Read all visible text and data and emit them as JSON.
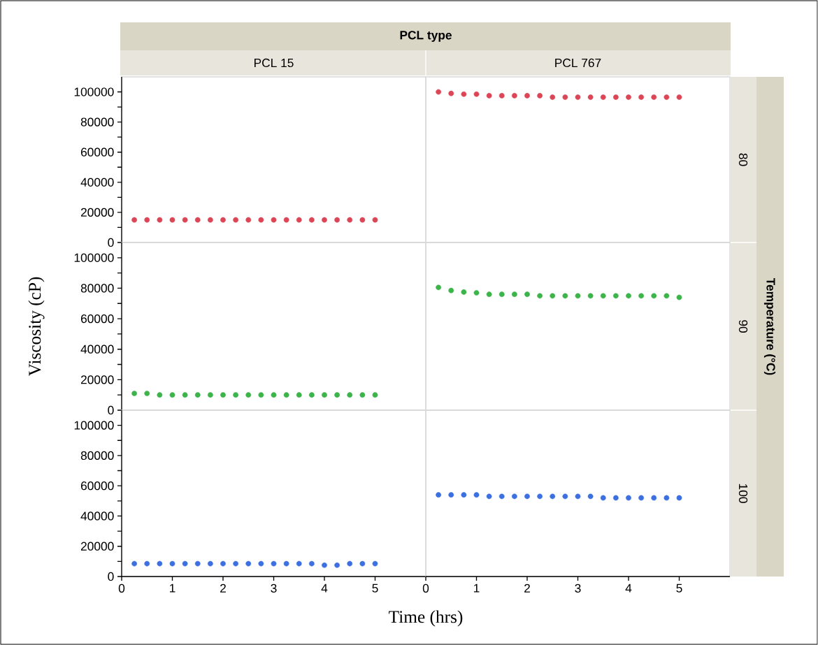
{
  "chart_data": [
    {
      "type": "scatter",
      "title": "PCL 15",
      "annotations": [
        "PCL type"
      ],
      "x": [
        0.25,
        0.5,
        0.75,
        1,
        1.25,
        1.5,
        1.75,
        2,
        2.25,
        2.5,
        2.75,
        3,
        3.25,
        3.5,
        3.75,
        4,
        4.25,
        4.5,
        4.75,
        5
      ],
      "values": [
        15000,
        15000,
        15000,
        15000,
        15000,
        15000,
        15000,
        15000,
        15000,
        15000,
        15000,
        15000,
        15000,
        15000,
        15000,
        15000,
        15000,
        15000,
        15000,
        15000
      ],
      "color": "#dc4555",
      "xlim": [
        0,
        6
      ],
      "ylim": [
        0,
        110000
      ],
      "yticks": [
        0,
        {
          "value": 10000,
          "label": null
        },
        20000,
        {
          "value": 30000,
          "label": null
        },
        40000,
        {
          "value": 50000,
          "label": null
        },
        60000,
        {
          "value": 70000,
          "label": null
        },
        80000,
        {
          "value": 90000,
          "label": null
        },
        100000
      ],
      "tick_labels": "y"
    },
    {
      "type": "scatter",
      "title": "PCL 767",
      "y2label": "80",
      "x": [
        0.25,
        0.5,
        0.75,
        1,
        1.25,
        1.5,
        1.75,
        2,
        2.25,
        2.5,
        2.75,
        3,
        3.25,
        3.5,
        3.75,
        4,
        4.25,
        4.5,
        4.75,
        5
      ],
      "values": [
        100000,
        99000,
        98500,
        98500,
        97500,
        97500,
        97500,
        97500,
        97500,
        96500,
        96500,
        96500,
        96500,
        96500,
        96500,
        96500,
        96500,
        96500,
        96500,
        96500
      ],
      "color": "#dc4555",
      "xlim": [
        0,
        6
      ],
      "ylim": [
        0,
        110000
      ],
      "tick_labels": false
    },
    {
      "type": "scatter",
      "ylabel": "Viscosity (cP)",
      "x": [
        0.25,
        0.5,
        0.75,
        1,
        1.25,
        1.5,
        1.75,
        2,
        2.25,
        2.5,
        2.75,
        3,
        3.25,
        3.5,
        3.75,
        4,
        4.25,
        4.5,
        4.75,
        5
      ],
      "values": [
        11000,
        11000,
        10000,
        10000,
        10000,
        10000,
        10000,
        10000,
        10000,
        10000,
        10000,
        10000,
        10000,
        10000,
        10000,
        10000,
        10000,
        10000,
        10000,
        10000
      ],
      "color": "#3cb44a",
      "xlim": [
        0,
        6
      ],
      "ylim": [
        0,
        110000
      ],
      "yticks": [
        0,
        {
          "value": 10000,
          "label": null
        },
        20000,
        {
          "value": 30000,
          "label": null
        },
        40000,
        {
          "value": 50000,
          "label": null
        },
        60000,
        {
          "value": 70000,
          "label": null
        },
        80000,
        {
          "value": 90000,
          "label": null
        },
        100000
      ],
      "tick_labels": "y"
    },
    {
      "type": "scatter",
      "y2label": "90",
      "annotations": [
        "Temperature (°C)"
      ],
      "x": [
        0.25,
        0.5,
        0.75,
        1,
        1.25,
        1.5,
        1.75,
        2,
        2.25,
        2.5,
        2.75,
        3,
        3.25,
        3.5,
        3.75,
        4,
        4.25,
        4.5,
        4.75,
        5
      ],
      "values": [
        80500,
        78500,
        77500,
        77000,
        76000,
        76000,
        76000,
        76000,
        75000,
        75000,
        75000,
        75000,
        75000,
        75000,
        75000,
        75000,
        75000,
        75000,
        75000,
        74000
      ],
      "color": "#3cb44a",
      "xlim": [
        0,
        6
      ],
      "ylim": [
        0,
        110000
      ],
      "tick_labels": false
    },
    {
      "type": "scatter",
      "xlabel": "Time (hrs)",
      "x": [
        0.25,
        0.5,
        0.75,
        1,
        1.25,
        1.5,
        1.75,
        2,
        2.25,
        2.5,
        2.75,
        3,
        3.25,
        3.5,
        3.75,
        4,
        4.25,
        4.5,
        4.75,
        5
      ],
      "values": [
        8500,
        8500,
        8500,
        8500,
        8500,
        8500,
        8500,
        8500,
        8500,
        8500,
        8500,
        8500,
        8500,
        8500,
        8500,
        7500,
        7500,
        8500,
        8500,
        8500
      ],
      "color": "#3c6fe0",
      "xlim": [
        0,
        6
      ],
      "ylim": [
        0,
        110000
      ],
      "xticks": [
        0,
        1,
        2,
        3,
        4,
        5
      ],
      "yticks": [
        0,
        {
          "value": 10000,
          "label": null
        },
        20000,
        {
          "value": 30000,
          "label": null
        },
        40000,
        {
          "value": 50000,
          "label": null
        },
        60000,
        {
          "value": 70000,
          "label": null
        },
        80000,
        {
          "value": 90000,
          "label": null
        },
        100000
      ]
    },
    {
      "type": "scatter",
      "y2label": "100",
      "x": [
        0.25,
        0.5,
        0.75,
        1,
        1.25,
        1.5,
        1.75,
        2,
        2.25,
        2.5,
        2.75,
        3,
        3.25,
        3.5,
        3.75,
        4,
        4.25,
        4.5,
        4.75,
        5
      ],
      "values": [
        54000,
        54000,
        54000,
        54000,
        53000,
        53000,
        53000,
        53000,
        53000,
        53000,
        53000,
        53000,
        53000,
        52000,
        52000,
        52000,
        52000,
        52000,
        52000,
        52000
      ],
      "color": "#3c6fe0",
      "xlim": [
        0,
        6
      ],
      "ylim": [
        0,
        110000
      ],
      "xticks": [
        0,
        1,
        2,
        3,
        4,
        5
      ],
      "tick_labels": "x"
    }
  ]
}
